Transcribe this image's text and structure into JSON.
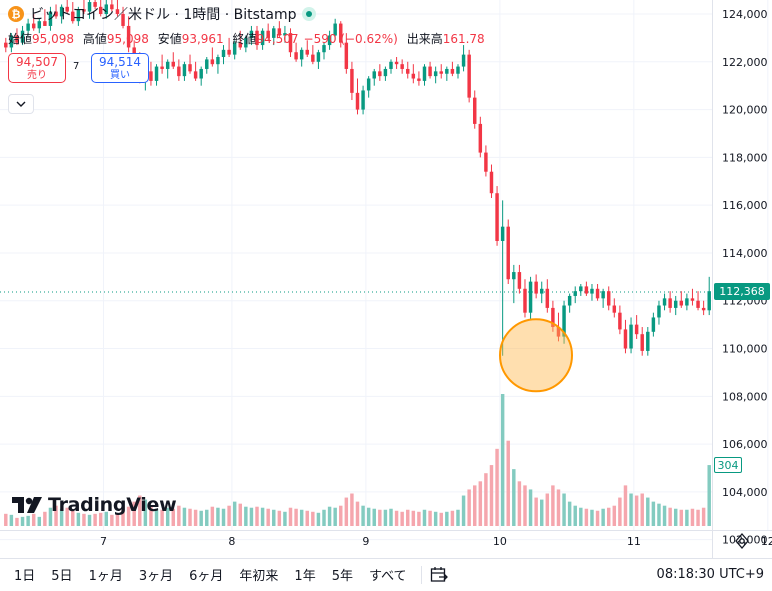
{
  "header": {
    "coin_glyph": "₿",
    "title": "ビットコイン／米ドル · 1時間 · Bitstamp",
    "ohlc": [
      {
        "label": "始値",
        "value": "95,098"
      },
      {
        "label": "高値",
        "value": "95,098"
      },
      {
        "label": "安値",
        "value": "93,961"
      },
      {
        "label": "終値",
        "value": "94,507"
      }
    ],
    "change": "−590 (−0.62%)",
    "volume_label": "出来高",
    "volume_value": "161.78"
  },
  "trade": {
    "sell_price": "94,507",
    "sell_label": "売り",
    "spread": "7",
    "buy_price": "94,514",
    "buy_label": "買い"
  },
  "logo": {
    "text": "TradingView"
  },
  "last_price_tag": "112,368",
  "volume_tag": "304",
  "colors": {
    "up": "#089981",
    "down": "#f23645",
    "up_volume": "#83cbc0",
    "down_volume": "#f5a6ad",
    "highlight": "#ff9800"
  },
  "chart_data": {
    "type": "candlestick",
    "y_ticks": [
      "124,000",
      "122,000",
      "120,000",
      "118,000",
      "116,000",
      "114,000",
      "112,000",
      "110,000",
      "108,000",
      "106,000",
      "104,000",
      "102,000"
    ],
    "y_range": [
      101500,
      124700
    ],
    "x_ticks": [
      "7",
      "8",
      "9",
      "10",
      "11",
      "12"
    ],
    "last_price": 112368,
    "annotation": {
      "type": "circle",
      "x": "11",
      "y": 109800
    },
    "candles": [
      [
        122800,
        123000,
        122400,
        122600,
        60
      ],
      [
        122600,
        123200,
        122400,
        123100,
        55
      ],
      [
        123100,
        123400,
        122700,
        122800,
        40
      ],
      [
        122800,
        123500,
        122700,
        123300,
        45
      ],
      [
        123300,
        123800,
        123100,
        123600,
        50
      ],
      [
        123600,
        124000,
        123300,
        123400,
        60
      ],
      [
        123400,
        123800,
        123200,
        123700,
        45
      ],
      [
        123700,
        124200,
        123500,
        123500,
        70
      ],
      [
        123500,
        124300,
        123300,
        124100,
        90
      ],
      [
        124100,
        124400,
        123800,
        123900,
        100
      ],
      [
        123900,
        124400,
        123600,
        124300,
        85
      ],
      [
        124300,
        124700,
        124000,
        124100,
        90
      ],
      [
        124100,
        124500,
        123600,
        123700,
        75
      ],
      [
        123700,
        124300,
        123500,
        124200,
        65
      ],
      [
        124200,
        124600,
        124000,
        124100,
        60
      ],
      [
        124100,
        124600,
        123800,
        124500,
        55
      ],
      [
        124500,
        124700,
        124200,
        124300,
        60
      ],
      [
        124300,
        124600,
        123900,
        124000,
        65
      ],
      [
        124000,
        124600,
        123800,
        124400,
        70
      ],
      [
        124400,
        124700,
        124100,
        124200,
        55
      ],
      [
        124200,
        124600,
        123900,
        124000,
        60
      ],
      [
        124000,
        124300,
        123400,
        123500,
        80
      ],
      [
        123500,
        123900,
        122400,
        122600,
        95
      ],
      [
        122600,
        122900,
        121800,
        122000,
        120
      ],
      [
        122000,
        122400,
        121100,
        121300,
        150
      ],
      [
        121300,
        121900,
        120800,
        121600,
        130
      ],
      [
        121600,
        122000,
        121000,
        121200,
        100
      ],
      [
        121200,
        121900,
        121000,
        121800,
        85
      ],
      [
        121800,
        122300,
        121500,
        121700,
        80
      ],
      [
        121700,
        122100,
        121300,
        122000,
        90
      ],
      [
        122000,
        122400,
        121700,
        121800,
        85
      ],
      [
        121800,
        122100,
        121200,
        121400,
        100
      ],
      [
        121400,
        122000,
        121200,
        121900,
        90
      ],
      [
        121900,
        122300,
        121500,
        121600,
        85
      ],
      [
        121600,
        122000,
        121200,
        121300,
        80
      ],
      [
        121300,
        121800,
        121000,
        121700,
        75
      ],
      [
        121700,
        122200,
        121500,
        122100,
        80
      ],
      [
        122100,
        122600,
        121800,
        121900,
        95
      ],
      [
        121900,
        122300,
        121500,
        122200,
        90
      ],
      [
        122200,
        122700,
        121900,
        122500,
        85
      ],
      [
        122500,
        123000,
        122200,
        122300,
        100
      ],
      [
        122300,
        122900,
        122100,
        122800,
        120
      ],
      [
        122800,
        123300,
        122500,
        122600,
        110
      ],
      [
        122600,
        123100,
        122400,
        123000,
        95
      ],
      [
        123000,
        123500,
        122700,
        123300,
        90
      ],
      [
        123300,
        123500,
        122500,
        122700,
        95
      ],
      [
        122700,
        123400,
        122500,
        123300,
        90
      ],
      [
        123300,
        123600,
        122900,
        123000,
        85
      ],
      [
        123000,
        123500,
        122700,
        123400,
        80
      ],
      [
        123400,
        123700,
        123000,
        123100,
        75
      ],
      [
        123100,
        123500,
        122800,
        123200,
        70
      ],
      [
        123200,
        123400,
        122200,
        122400,
        90
      ],
      [
        122400,
        122800,
        122000,
        122100,
        85
      ],
      [
        122100,
        122600,
        121800,
        122500,
        80
      ],
      [
        122500,
        122900,
        122200,
        122300,
        75
      ],
      [
        122300,
        122700,
        121900,
        122000,
        70
      ],
      [
        122000,
        122500,
        121700,
        122400,
        65
      ],
      [
        122400,
        122800,
        122100,
        122700,
        80
      ],
      [
        122700,
        123300,
        122500,
        123100,
        95
      ],
      [
        123100,
        123800,
        122900,
        123600,
        90
      ],
      [
        123600,
        123700,
        122600,
        122800,
        100
      ],
      [
        122800,
        123200,
        121500,
        121700,
        140
      ],
      [
        121700,
        122000,
        120400,
        120700,
        160
      ],
      [
        120700,
        121300,
        119800,
        120000,
        120
      ],
      [
        120000,
        121000,
        119800,
        120800,
        100
      ],
      [
        120800,
        121400,
        120500,
        121300,
        90
      ],
      [
        121300,
        121700,
        121000,
        121600,
        85
      ],
      [
        121600,
        121900,
        121200,
        121400,
        80
      ],
      [
        121400,
        121800,
        121200,
        121700,
        80
      ],
      [
        121700,
        122100,
        121500,
        122000,
        85
      ],
      [
        122000,
        122200,
        121700,
        121900,
        75
      ],
      [
        121900,
        122100,
        121500,
        121700,
        70
      ],
      [
        121700,
        122000,
        121300,
        121500,
        80
      ],
      [
        121500,
        121900,
        121100,
        121300,
        75
      ],
      [
        121300,
        121600,
        121000,
        121200,
        70
      ],
      [
        121200,
        121900,
        121000,
        121800,
        80
      ],
      [
        121800,
        122000,
        121300,
        121400,
        75
      ],
      [
        121400,
        121800,
        121100,
        121600,
        70
      ],
      [
        121600,
        121900,
        121300,
        121500,
        65
      ],
      [
        121500,
        121800,
        121200,
        121700,
        70
      ],
      [
        121700,
        122000,
        121400,
        121500,
        75
      ],
      [
        121500,
        121900,
        121300,
        121800,
        80
      ],
      [
        121800,
        122700,
        121600,
        122300,
        150
      ],
      [
        122300,
        122500,
        120300,
        120500,
        180
      ],
      [
        120500,
        120800,
        119200,
        119400,
        200
      ],
      [
        119400,
        119700,
        118000,
        118200,
        220
      ],
      [
        118200,
        118500,
        117200,
        117400,
        260
      ],
      [
        117400,
        117700,
        116300,
        116500,
        300
      ],
      [
        116500,
        116800,
        114300,
        114500,
        380
      ],
      [
        114500,
        116200,
        109700,
        115100,
        650
      ],
      [
        115100,
        115400,
        112700,
        112900,
        420
      ],
      [
        112900,
        113500,
        111900,
        113200,
        280
      ],
      [
        113200,
        113500,
        112300,
        112500,
        220
      ],
      [
        112500,
        112900,
        111300,
        111500,
        200
      ],
      [
        111500,
        113000,
        111200,
        112800,
        180
      ],
      [
        112800,
        113100,
        112100,
        112300,
        140
      ],
      [
        112300,
        112800,
        111900,
        112500,
        130
      ],
      [
        112500,
        112900,
        111500,
        111700,
        160
      ],
      [
        111700,
        112000,
        110700,
        110900,
        200
      ],
      [
        110900,
        111500,
        110300,
        110500,
        180
      ],
      [
        110500,
        112000,
        110200,
        111800,
        160
      ],
      [
        111800,
        112300,
        111500,
        112200,
        120
      ],
      [
        112200,
        112600,
        111900,
        112400,
        100
      ],
      [
        112400,
        112700,
        112200,
        112600,
        90
      ],
      [
        112600,
        112800,
        112200,
        112300,
        85
      ],
      [
        112300,
        112700,
        112000,
        112500,
        80
      ],
      [
        112500,
        112700,
        112000,
        112100,
        75
      ],
      [
        112100,
        112500,
        111700,
        112400,
        85
      ],
      [
        112400,
        112600,
        111600,
        111800,
        90
      ],
      [
        111800,
        112100,
        111300,
        111500,
        100
      ],
      [
        111500,
        111800,
        110600,
        110800,
        140
      ],
      [
        110800,
        111200,
        109800,
        110000,
        200
      ],
      [
        110000,
        111300,
        109800,
        111000,
        160
      ],
      [
        111000,
        111400,
        110400,
        110600,
        150
      ],
      [
        110600,
        110900,
        109700,
        109900,
        160
      ],
      [
        109900,
        110900,
        109700,
        110700,
        140
      ],
      [
        110700,
        111500,
        110500,
        111300,
        120
      ],
      [
        111300,
        112000,
        111000,
        111800,
        110
      ],
      [
        111800,
        112300,
        111600,
        112100,
        100
      ],
      [
        112100,
        112400,
        111500,
        111700,
        90
      ],
      [
        111700,
        112200,
        111400,
        112000,
        85
      ],
      [
        112000,
        112400,
        111700,
        111800,
        80
      ],
      [
        111800,
        112300,
        111600,
        112100,
        80
      ],
      [
        112100,
        112500,
        111800,
        112000,
        85
      ],
      [
        112000,
        112400,
        111600,
        111700,
        80
      ],
      [
        111700,
        112000,
        111400,
        111600,
        90
      ],
      [
        111600,
        113000,
        111400,
        112400,
        300
      ]
    ]
  },
  "toolbar": {
    "ranges": [
      "1日",
      "5日",
      "1ヶ月",
      "3ヶ月",
      "6ヶ月",
      "年初来",
      "1年",
      "5年",
      "すべて"
    ],
    "clock": "08:18:30 UTC+9"
  }
}
